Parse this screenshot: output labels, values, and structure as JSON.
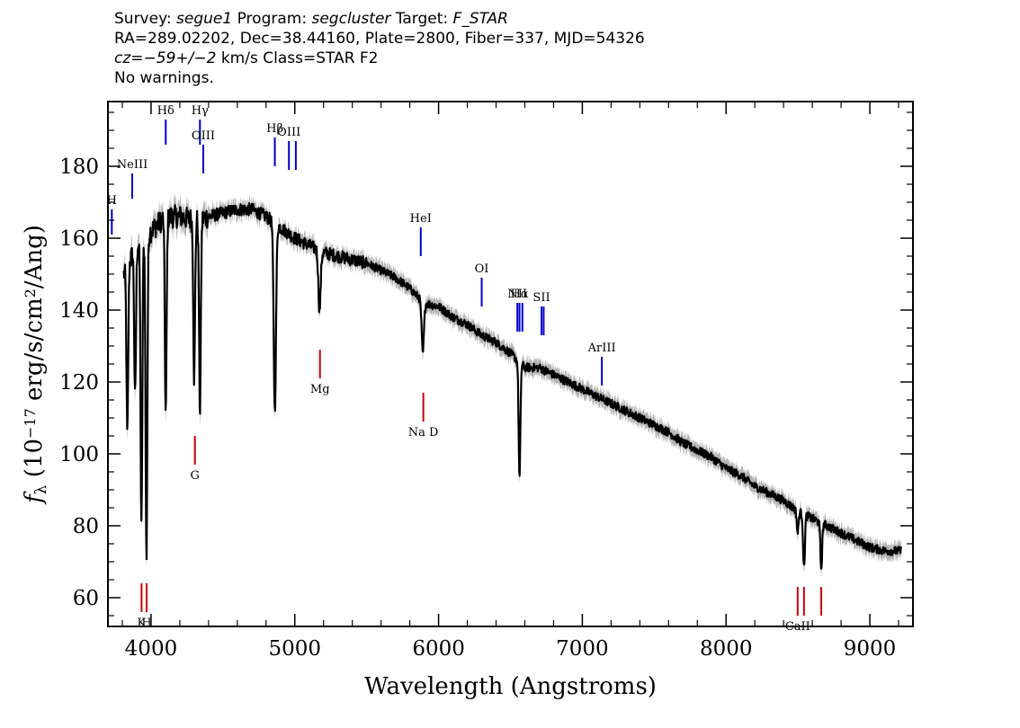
{
  "header": {
    "survey_label": "Survey:",
    "survey": "segue1",
    "program_label": "Program:",
    "program": "segcluster",
    "target_label": "Target:",
    "target": "F_STAR",
    "line2": "RA=289.02202, Dec=38.44160, Plate=2800, Fiber=337, MJD=54326",
    "cz_label": "cz=",
    "cz_value": "−59+/−2",
    "cz_tail": " km/s Class=STAR F2",
    "line4": "No warnings."
  },
  "chart_data": {
    "type": "line",
    "xlabel": "Wavelength (Angstroms)",
    "ylabel": "f_λ (10^-17 erg/s/cm^2/Ang)",
    "xlim": [
      3700,
      9300
    ],
    "ylim": [
      52,
      198
    ],
    "xticks": [
      4000,
      5000,
      6000,
      7000,
      8000,
      9000
    ],
    "yticks": [
      60,
      80,
      100,
      120,
      140,
      160,
      180
    ],
    "colors": {
      "spectrum": "#000000",
      "error_band": "#b4b4b4",
      "emission": "#0000cc",
      "absorption": "#cc0000"
    },
    "continuum": [
      [
        3810,
        150
      ],
      [
        3900,
        158
      ],
      [
        4000,
        162
      ],
      [
        4100,
        166
      ],
      [
        4200,
        166
      ],
      [
        4300,
        165
      ],
      [
        4400,
        166
      ],
      [
        4500,
        167
      ],
      [
        4600,
        168
      ],
      [
        4700,
        168
      ],
      [
        4800,
        166
      ],
      [
        4900,
        163
      ],
      [
        5000,
        160
      ],
      [
        5100,
        158
      ],
      [
        5200,
        156
      ],
      [
        5300,
        155
      ],
      [
        5400,
        154
      ],
      [
        5500,
        153
      ],
      [
        5600,
        151
      ],
      [
        5700,
        149
      ],
      [
        5800,
        146
      ],
      [
        5900,
        142
      ],
      [
        6000,
        141
      ],
      [
        6100,
        138
      ],
      [
        6200,
        136
      ],
      [
        6300,
        133
      ],
      [
        6400,
        131
      ],
      [
        6500,
        128
      ],
      [
        6600,
        124
      ],
      [
        6700,
        124
      ],
      [
        6800,
        122
      ],
      [
        6900,
        120
      ],
      [
        7000,
        118
      ],
      [
        7100,
        116
      ],
      [
        7200,
        114
      ],
      [
        7300,
        112
      ],
      [
        7400,
        110
      ],
      [
        7500,
        108
      ],
      [
        7600,
        106
      ],
      [
        7700,
        103
      ],
      [
        7800,
        101
      ],
      [
        7900,
        99
      ],
      [
        8000,
        96
      ],
      [
        8100,
        94
      ],
      [
        8200,
        91
      ],
      [
        8300,
        89
      ],
      [
        8400,
        87
      ],
      [
        8500,
        84
      ],
      [
        8600,
        82
      ],
      [
        8700,
        80
      ],
      [
        8800,
        78
      ],
      [
        8900,
        76
      ],
      [
        9000,
        74
      ],
      [
        9100,
        73
      ],
      [
        9220,
        73
      ]
    ],
    "absorption_features": [
      [
        3835,
        105
      ],
      [
        3889,
        115
      ],
      [
        3933,
        79
      ],
      [
        3968,
        71
      ],
      [
        4102,
        111
      ],
      [
        4300,
        121
      ],
      [
        4340,
        112
      ],
      [
        4861,
        112
      ],
      [
        5172,
        140
      ],
      [
        5890,
        128
      ],
      [
        6563,
        93
      ],
      [
        8498,
        78
      ],
      [
        8542,
        68
      ],
      [
        8662,
        68
      ]
    ],
    "emission_lines": [
      {
        "label": "H",
        "wave": 3727,
        "y0": 161,
        "y1": 168
      },
      {
        "label": "NeIII",
        "wave": 3869,
        "y0": 171,
        "y1": 178
      },
      {
        "label": "Hδ",
        "wave": 4102,
        "y0": 186,
        "y1": 193
      },
      {
        "label": "Hγ",
        "wave": 4340,
        "y0": 186,
        "y1": 193
      },
      {
        "label": "OIII",
        "wave": 4363,
        "y0": 178,
        "y1": 186
      },
      {
        "label": "Hβ",
        "wave": 4861,
        "y0": 180,
        "y1": 188
      },
      {
        "label": "OIII",
        "wave": 4959,
        "y0": 179,
        "y1": 187
      },
      {
        "label": "",
        "wave": 5007,
        "y0": 179,
        "y1": 187
      },
      {
        "label": "HeI",
        "wave": 5876,
        "y0": 155,
        "y1": 163
      },
      {
        "label": "OI",
        "wave": 6300,
        "y0": 141,
        "y1": 149
      },
      {
        "label": "Hα",
        "wave": 6563,
        "y0": 134,
        "y1": 142
      },
      {
        "label": "NII",
        "wave": 6548,
        "y0": 134,
        "y1": 142
      },
      {
        "label": "",
        "wave": 6583,
        "y0": 134,
        "y1": 142
      },
      {
        "label": "SII",
        "wave": 6716,
        "y0": 133,
        "y1": 141
      },
      {
        "label": "",
        "wave": 6731,
        "y0": 133,
        "y1": 141
      },
      {
        "label": "ArIII",
        "wave": 7136,
        "y0": 119,
        "y1": 127
      }
    ],
    "absorption_lines": [
      {
        "label": "K",
        "wave": 3934,
        "y0": 56,
        "y1": 64
      },
      {
        "label": "H",
        "wave": 3969,
        "y0": 56,
        "y1": 64
      },
      {
        "label": "G",
        "wave": 4305,
        "y0": 97,
        "y1": 105
      },
      {
        "label": "Mg",
        "wave": 5175,
        "y0": 121,
        "y1": 129
      },
      {
        "label": "Na D",
        "wave": 5894,
        "y0": 109,
        "y1": 117
      },
      {
        "label": "CaII",
        "wave": 8498,
        "y0": 55,
        "y1": 63
      },
      {
        "label": "",
        "wave": 8542,
        "y0": 55,
        "y1": 63
      },
      {
        "label": "",
        "wave": 8662,
        "y0": 55,
        "y1": 63
      }
    ]
  }
}
